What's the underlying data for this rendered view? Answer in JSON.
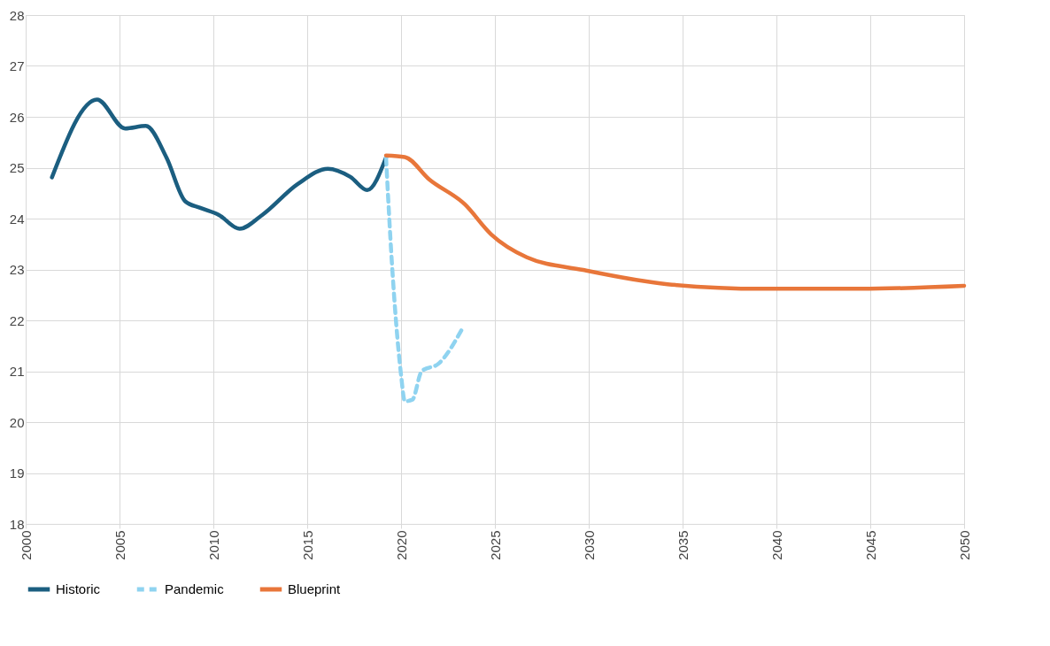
{
  "chart_data": {
    "type": "line",
    "xlim": [
      2000,
      2050
    ],
    "xticks": [
      2000,
      2005,
      2010,
      2015,
      2020,
      2025,
      2030,
      2035,
      2040,
      2045,
      2050
    ],
    "ylim": [
      18,
      28
    ],
    "yticks": [
      18,
      19,
      20,
      21,
      22,
      23,
      24,
      25,
      26,
      27,
      28
    ],
    "grid": true,
    "legend": "bottom",
    "marker": "none",
    "series": [
      {
        "name": "Historic",
        "color": "#1b5e80",
        "line_style": "solid",
        "x": [
          2001.4,
          2003.8,
          2005.3,
          2006.4,
          2007.5,
          2008.5,
          2009.3,
          2010.3,
          2011.4,
          2012.6,
          2014.5,
          2016.1,
          2017.3,
          2018.2,
          2019.2
        ],
        "values": [
          24.81,
          26.34,
          25.77,
          25.82,
          25.2,
          24.34,
          24.21,
          24.07,
          23.8,
          24.07,
          24.68,
          24.98,
          24.82,
          24.56,
          25.2
        ]
      },
      {
        "name": "Pandemic",
        "color": "#8fd3f0",
        "line_style": "dashed",
        "x": [
          2019.2,
          2019.5,
          2020.0,
          2020.2,
          2020.6,
          2021.1,
          2022.0,
          2023.3
        ],
        "values": [
          25.2,
          23.2,
          20.93,
          20.41,
          20.44,
          21.0,
          21.15,
          21.86
        ]
      },
      {
        "name": "Blueprint",
        "color": "#e8763a",
        "line_style": "solid",
        "x": [
          2019.2,
          2020.2,
          2021.5,
          2023.4,
          2024.8,
          2026.7,
          2029.7,
          2034.2,
          2039.3,
          2044.5,
          2050
        ],
        "values": [
          25.24,
          25.21,
          24.77,
          24.28,
          23.69,
          23.24,
          22.99,
          22.71,
          22.62,
          22.62,
          22.68
        ]
      }
    ]
  }
}
